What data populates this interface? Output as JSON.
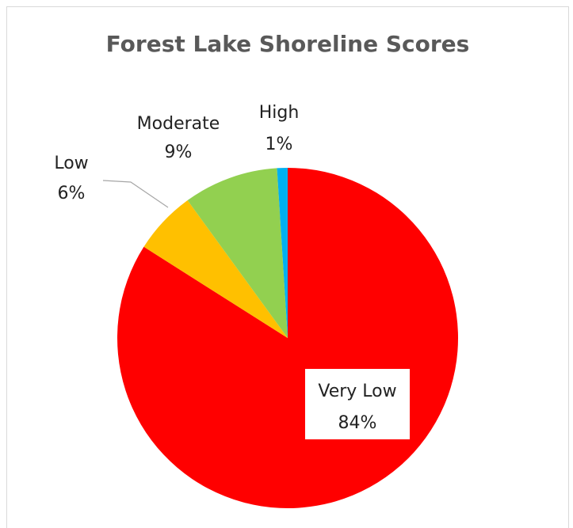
{
  "chart_data": {
    "type": "pie",
    "title": "Forest Lake Shoreline Scores",
    "categories": [
      "Very Low",
      "Low",
      "Moderate",
      "High"
    ],
    "values": [
      84,
      6,
      9,
      1
    ],
    "value_labels": [
      "84%",
      "6%",
      "9%",
      "1%"
    ],
    "colors": [
      "#ff0000",
      "#ffc000",
      "#92d050",
      "#00b0f0"
    ]
  }
}
